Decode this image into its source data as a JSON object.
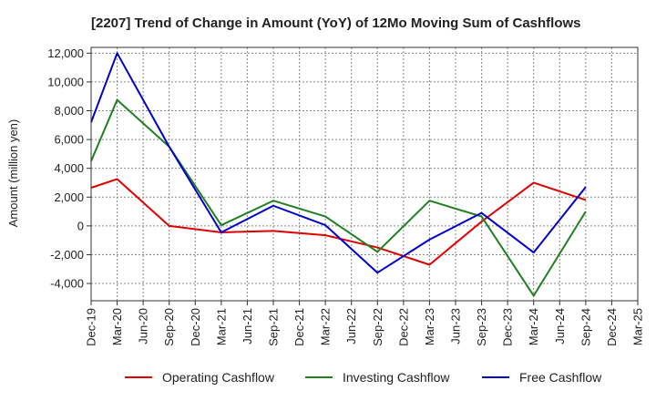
{
  "chart_data": {
    "type": "line",
    "title": "[2207]  Trend of Change in Amount (YoY) of 12Mo Moving Sum of Cashflows",
    "xlabel": "",
    "ylabel": "Amount (million yen)",
    "ylim": [
      -5200,
      12400
    ],
    "yticks": [
      12000,
      10000,
      8000,
      6000,
      4000,
      2000,
      0,
      -2000,
      -4000
    ],
    "ytick_labels": [
      "12,000",
      "10,000",
      "8,000",
      "6,000",
      "4,000",
      "2,000",
      "0",
      "-2,000",
      "-4,000"
    ],
    "categories": [
      "Dec-19",
      "Mar-20",
      "Jun-20",
      "Sep-20",
      "Dec-20",
      "Mar-21",
      "Jun-21",
      "Sep-21",
      "Dec-21",
      "Mar-22",
      "Jun-22",
      "Sep-22",
      "Dec-22",
      "Mar-23",
      "Jun-23",
      "Sep-23",
      "Dec-23",
      "Mar-24",
      "Jun-24",
      "Sep-24",
      "Dec-24",
      "Mar-25"
    ],
    "series": [
      {
        "name": "Operating Cashflow",
        "color": "#e00000",
        "values": [
          2650,
          3250,
          null,
          0,
          null,
          -450,
          null,
          -350,
          null,
          -650,
          null,
          -1500,
          null,
          -2700,
          null,
          300,
          null,
          3000,
          null,
          1800,
          null,
          null
        ]
      },
      {
        "name": "Investing Cashflow",
        "color": "#208020",
        "values": [
          4500,
          8750,
          null,
          5500,
          null,
          50,
          null,
          1750,
          null,
          650,
          null,
          -1800,
          null,
          1750,
          null,
          650,
          null,
          -4850,
          null,
          1000,
          null,
          null
        ]
      },
      {
        "name": "Free Cashflow",
        "color": "#0000cc",
        "values": [
          7200,
          12000,
          null,
          5500,
          null,
          -450,
          null,
          1400,
          null,
          50,
          null,
          -3250,
          null,
          -950,
          null,
          900,
          null,
          -1850,
          null,
          2700,
          null,
          null
        ]
      }
    ],
    "grid": true,
    "legend_position": "bottom"
  }
}
